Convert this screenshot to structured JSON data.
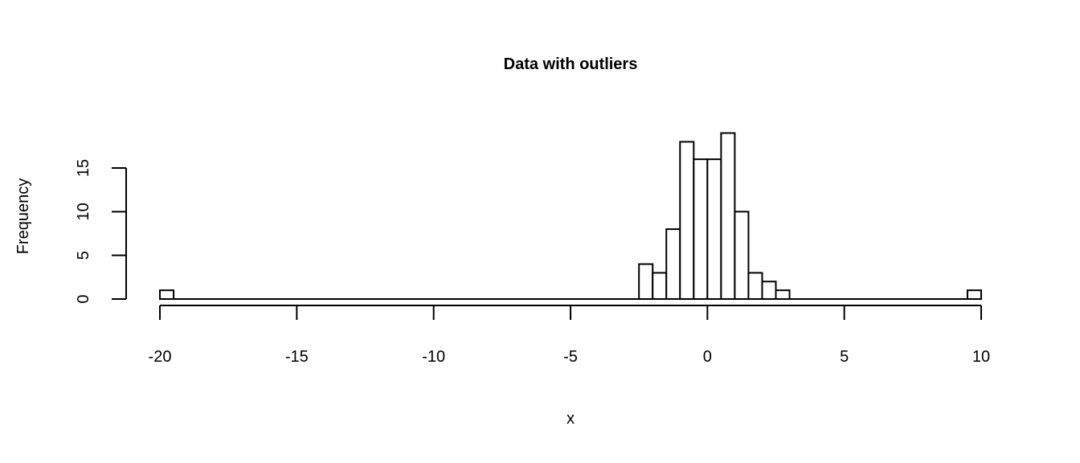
{
  "chart_data": {
    "type": "bar",
    "title": "Data with outliers",
    "xlabel": "x",
    "ylabel": "Frequency",
    "xlim": [
      -20,
      10
    ],
    "ylim": [
      0,
      19
    ],
    "xticks": [
      -20,
      -15,
      -10,
      -5,
      0,
      5,
      10
    ],
    "yticks": [
      0,
      5,
      10,
      15
    ],
    "bin_width": 0.5,
    "bins": [
      {
        "x0": -20.0,
        "x1": -19.5,
        "count": 1
      },
      {
        "x0": -2.5,
        "x1": -2.0,
        "count": 4
      },
      {
        "x0": -2.0,
        "x1": -1.5,
        "count": 3
      },
      {
        "x0": -1.5,
        "x1": -1.0,
        "count": 8
      },
      {
        "x0": -1.0,
        "x1": -0.5,
        "count": 18
      },
      {
        "x0": -0.5,
        "x1": 0.0,
        "count": 16
      },
      {
        "x0": 0.0,
        "x1": 0.5,
        "count": 16
      },
      {
        "x0": 0.5,
        "x1": 1.0,
        "count": 19
      },
      {
        "x0": 1.0,
        "x1": 1.5,
        "count": 10
      },
      {
        "x0": 1.5,
        "x1": 2.0,
        "count": 3
      },
      {
        "x0": 2.0,
        "x1": 2.5,
        "count": 2
      },
      {
        "x0": 2.5,
        "x1": 3.0,
        "count": 1
      },
      {
        "x0": 9.5,
        "x1": 10.0,
        "count": 1
      }
    ],
    "grid": false,
    "legend": "none"
  }
}
